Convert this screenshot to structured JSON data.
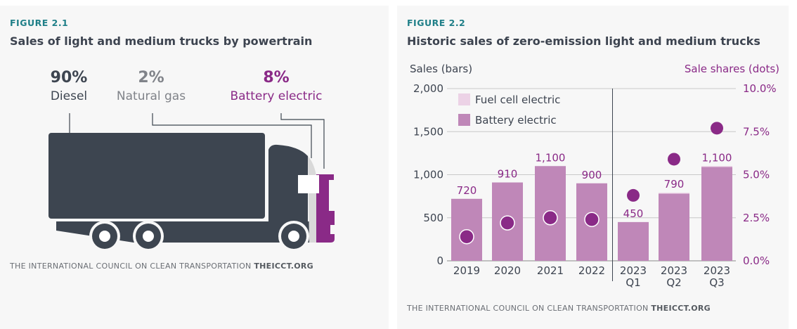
{
  "colors": {
    "teal": "#1f7f88",
    "diesel": "#3d4550",
    "natural_gas": "#d9d9d9",
    "battery": "#8a2a87",
    "bar": "#bf87b8",
    "fuel_cell": "#ecd2e6"
  },
  "fig1": {
    "label": "FIGURE 2.1",
    "title": "Sales of light and medium trucks by powertrain",
    "segments": [
      {
        "pct": "90%",
        "name": "Diesel"
      },
      {
        "pct": "2%",
        "name": "Natural gas"
      },
      {
        "pct": "8%",
        "name": "Battery electric"
      }
    ],
    "source": "THE INTERNATIONAL COUNCIL ON CLEAN TRANSPORTATION",
    "source_bold": "THEICCT.ORG"
  },
  "fig2": {
    "label": "FIGURE 2.2",
    "title": "Historic sales of zero-emission light and medium trucks",
    "source": "THE INTERNATIONAL COUNCIL ON CLEAN TRANSPORTATION",
    "source_bold": "THEICCT.ORG"
  },
  "chart_data": {
    "type": "bar",
    "categories": [
      [
        "2019"
      ],
      [
        "2020"
      ],
      [
        "2021"
      ],
      [
        "2022"
      ],
      [
        "2023",
        "Q1"
      ],
      [
        "2023",
        "Q2"
      ],
      [
        "2023",
        "Q3"
      ]
    ],
    "ylabel": "Sales (bars)",
    "y2label": "Sale shares (dots)",
    "ylim": [
      0,
      2000
    ],
    "yticks": [
      "0",
      "500",
      "1,000",
      "1,500",
      "2,000"
    ],
    "y2lim": [
      0,
      10
    ],
    "y2ticks": [
      "0.0%",
      "2.5%",
      "5.0%",
      "7.5%",
      "10.0%"
    ],
    "grid": true,
    "legend": [
      "Fuel cell electric",
      "Battery electric"
    ],
    "legend_position": "top-left",
    "series": [
      {
        "name": "Battery electric",
        "values": [
          720,
          910,
          1100,
          900,
          450,
          780,
          1090
        ]
      },
      {
        "name": "Fuel cell electric",
        "values": [
          0,
          0,
          0,
          0,
          0,
          10,
          10
        ]
      }
    ],
    "bar_labels": [
      "720",
      "910",
      "1,100",
      "900",
      "450",
      "790",
      "1,100"
    ],
    "share_dots_percent": [
      1.4,
      2.2,
      2.5,
      2.4,
      3.8,
      5.9,
      7.7
    ],
    "divider_after": "2022"
  }
}
